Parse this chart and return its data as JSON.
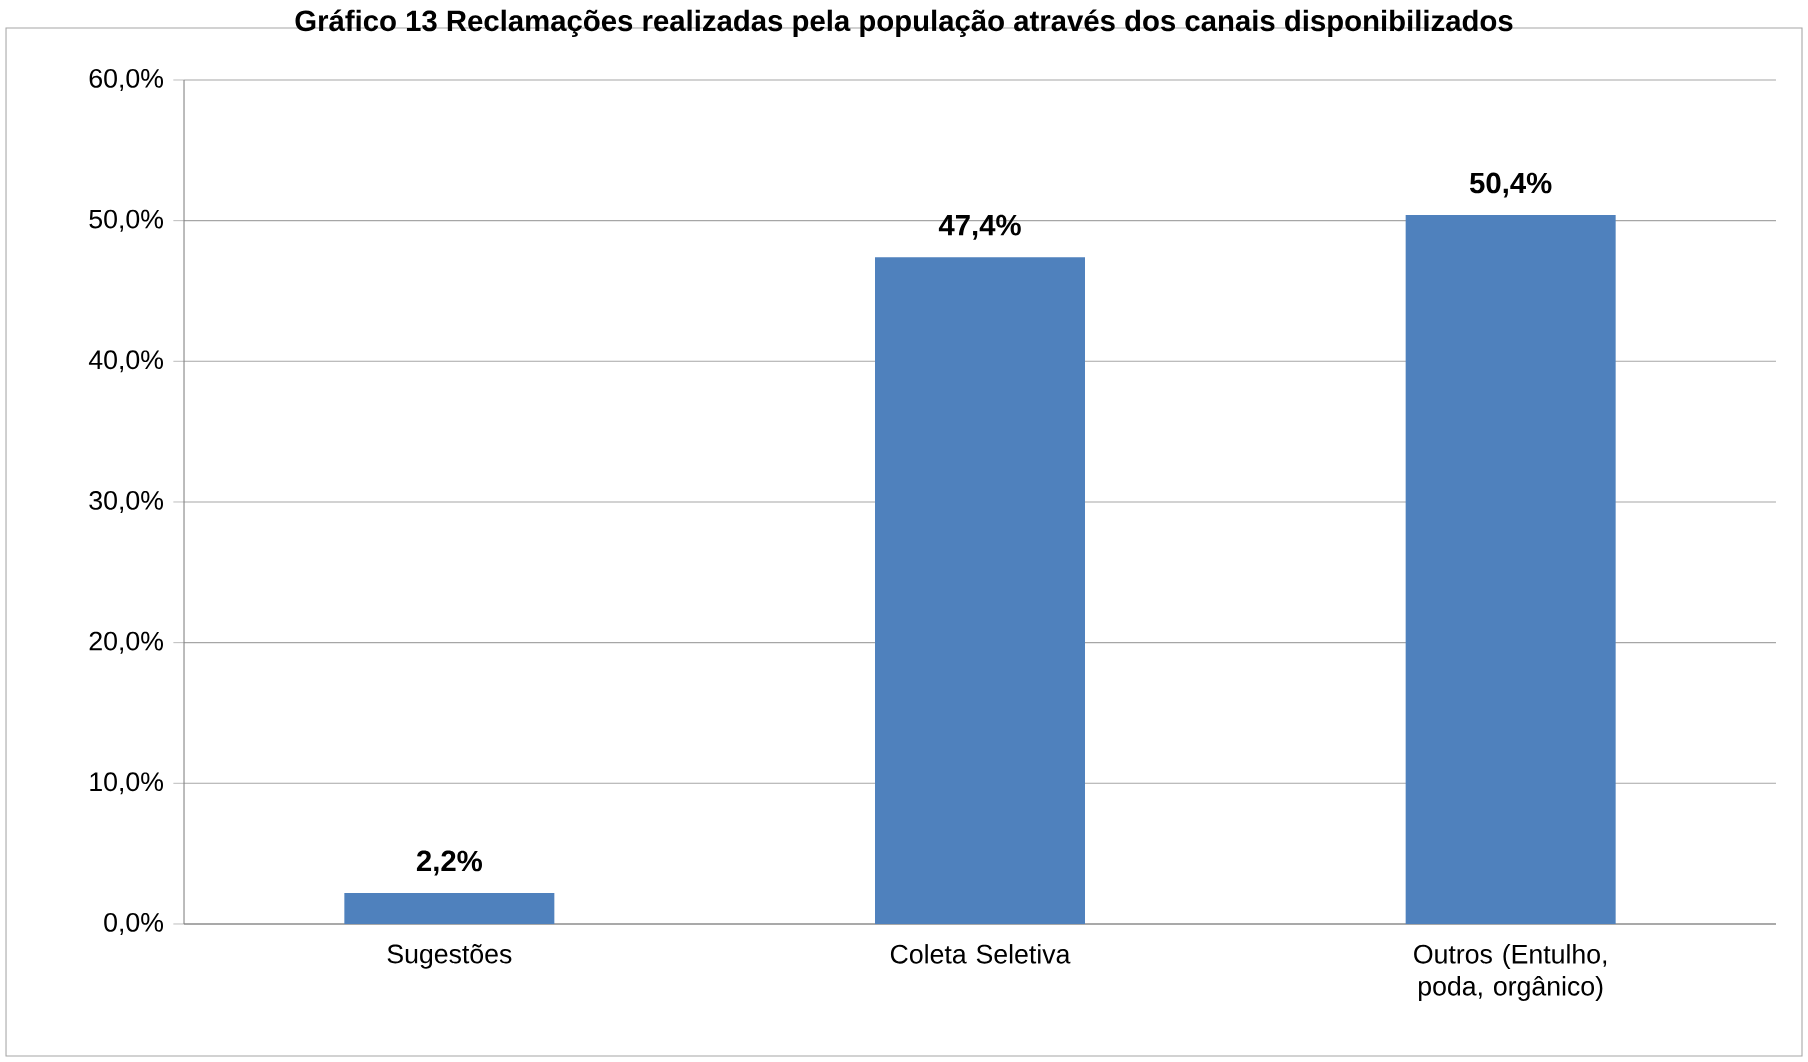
{
  "chart_data": {
    "type": "bar",
    "title": "Gráfico 13 Reclamações realizadas pela população através dos canais disponibilizados",
    "categories": [
      "Sugestões",
      "Coleta Seletiva",
      "Outros (Entulho, poda, orgânico)"
    ],
    "values": [
      2.2,
      47.4,
      50.4
    ],
    "value_labels": [
      "2,2%",
      "47,4%",
      "50,4%"
    ],
    "color": "#4f81bd",
    "ylim": [
      0,
      60
    ],
    "yticks": [
      {
        "value": 0,
        "label": "0,0%"
      },
      {
        "value": 10,
        "label": "10,0%"
      },
      {
        "value": 20,
        "label": "20,0%"
      },
      {
        "value": 30,
        "label": "30,0%"
      },
      {
        "value": 40,
        "label": "40,0%"
      },
      {
        "value": 50,
        "label": "50,0%"
      },
      {
        "value": 60,
        "label": "60,0%"
      }
    ],
    "grid": "y"
  }
}
